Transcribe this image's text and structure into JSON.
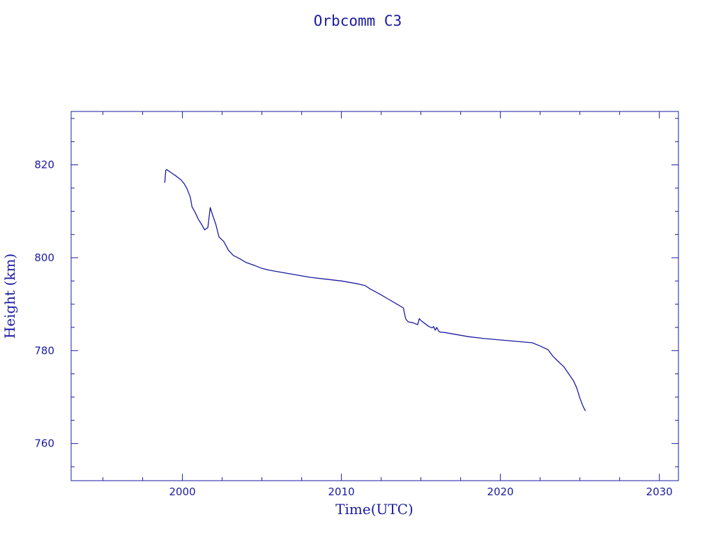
{
  "chart_data": {
    "type": "line",
    "title": "Orbcomm C3",
    "xlabel": "Time(UTC)",
    "ylabel": "Height (km)",
    "xlim": [
      1993,
      2031.2
    ],
    "ylim": [
      752,
      831.5
    ],
    "x_ticks": [
      2000,
      2010,
      2020,
      2030
    ],
    "y_ticks": [
      760,
      780,
      800,
      820
    ],
    "x_minor_step": 2.5,
    "y_minor_step": 5,
    "grid": false,
    "color": "#1a1aa0",
    "series": [
      {
        "x": [
          1998.85,
          1998.9,
          1998.95,
          1999.0,
          1999.3,
          1999.6,
          1999.9,
          2000.1,
          2000.3,
          2000.5,
          2000.6,
          2000.8,
          2001.0,
          2001.2,
          2001.4,
          2001.6,
          2001.75,
          2001.9,
          2002.1,
          2002.3,
          2002.6,
          2002.9,
          2003.2,
          2003.6,
          2004.0,
          2004.5,
          2005.0,
          2005.5,
          2006.0,
          2007.0,
          2008.0,
          2009.0,
          2010.0,
          2011.0,
          2011.5,
          2011.8,
          2012.5,
          2013.0,
          2013.5,
          2013.9,
          2014.0,
          2014.05,
          2014.2,
          2014.5,
          2014.8,
          2014.9,
          2015.0,
          2015.3,
          2015.5,
          2015.7,
          2015.8,
          2015.9,
          2016.0,
          2016.1,
          2016.2,
          2016.5,
          2017.0,
          2018.0,
          2019.0,
          2020.0,
          2021.0,
          2022.0,
          2022.5,
          2023.0,
          2023.3,
          2023.6,
          2024.0,
          2024.3,
          2024.6,
          2024.8,
          2025.0,
          2025.2,
          2025.35
        ],
        "y": [
          816.2,
          816.4,
          818.8,
          819.0,
          818.3,
          817.6,
          816.8,
          816.0,
          814.8,
          813.0,
          811.0,
          809.8,
          808.3,
          807.2,
          806.0,
          806.5,
          810.8,
          809.2,
          807.2,
          804.5,
          803.5,
          801.6,
          800.5,
          799.8,
          799.0,
          798.4,
          797.7,
          797.3,
          797.0,
          796.4,
          795.8,
          795.4,
          795.0,
          794.4,
          794.0,
          793.3,
          792.0,
          791.0,
          790.0,
          789.2,
          787.5,
          786.8,
          786.2,
          786.0,
          785.6,
          786.9,
          786.5,
          785.7,
          785.2,
          784.9,
          785.2,
          784.4,
          785.0,
          784.3,
          784.0,
          783.9,
          783.6,
          783.0,
          782.6,
          782.3,
          782.0,
          781.7,
          781.0,
          780.2,
          778.8,
          777.8,
          776.5,
          775.0,
          773.5,
          772.0,
          769.8,
          768.0,
          767.0
        ]
      }
    ]
  }
}
